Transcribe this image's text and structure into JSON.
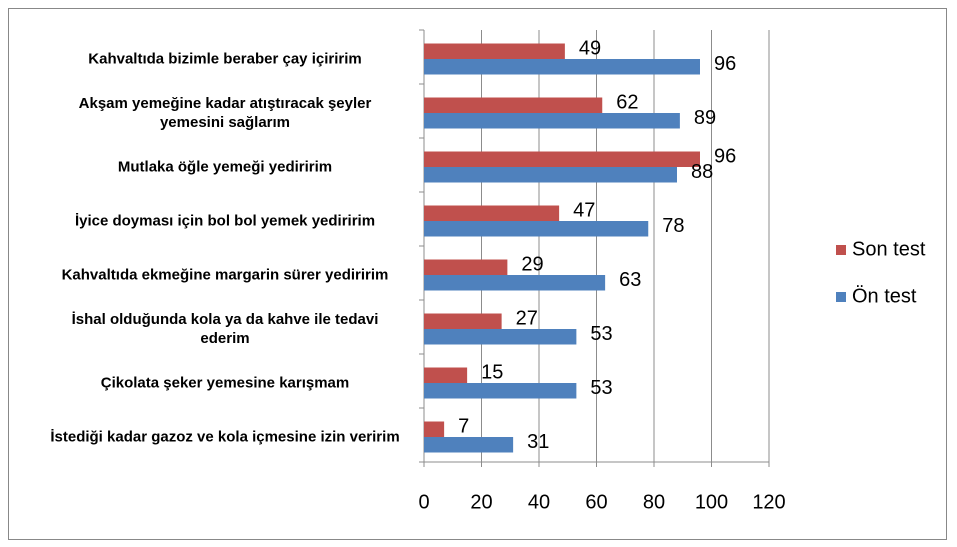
{
  "chart_data": {
    "type": "hbar",
    "categories": [
      "Kahvaltıda bizimle beraber çay içiririm",
      "Akşam yemeğine kadar atıştıracak şeyler yemesini sağlarım",
      "Mutlaka öğle yemeği yediririm",
      "İyice doyması için bol bol yemek yediririm",
      "Kahvaltıda ekmeğine margarin sürer yediririm",
      "İshal olduğunda kola ya da kahve ile tedavi ederim",
      "Çikolata şeker yemesine karışmam",
      "İstediği kadar gazoz ve kola içmesine izin veririm"
    ],
    "series": [
      {
        "name": "Son test",
        "color": "#c0504d",
        "values": [
          49,
          62,
          96,
          47,
          29,
          27,
          15,
          7
        ]
      },
      {
        "name": "Ön test",
        "color": "#4f81bd",
        "values": [
          96,
          89,
          88,
          78,
          63,
          53,
          53,
          31
        ]
      }
    ],
    "xlim": [
      0,
      120
    ],
    "xticks": [
      0,
      20,
      40,
      60,
      80,
      100,
      120
    ],
    "grid": true,
    "legend": "right"
  }
}
